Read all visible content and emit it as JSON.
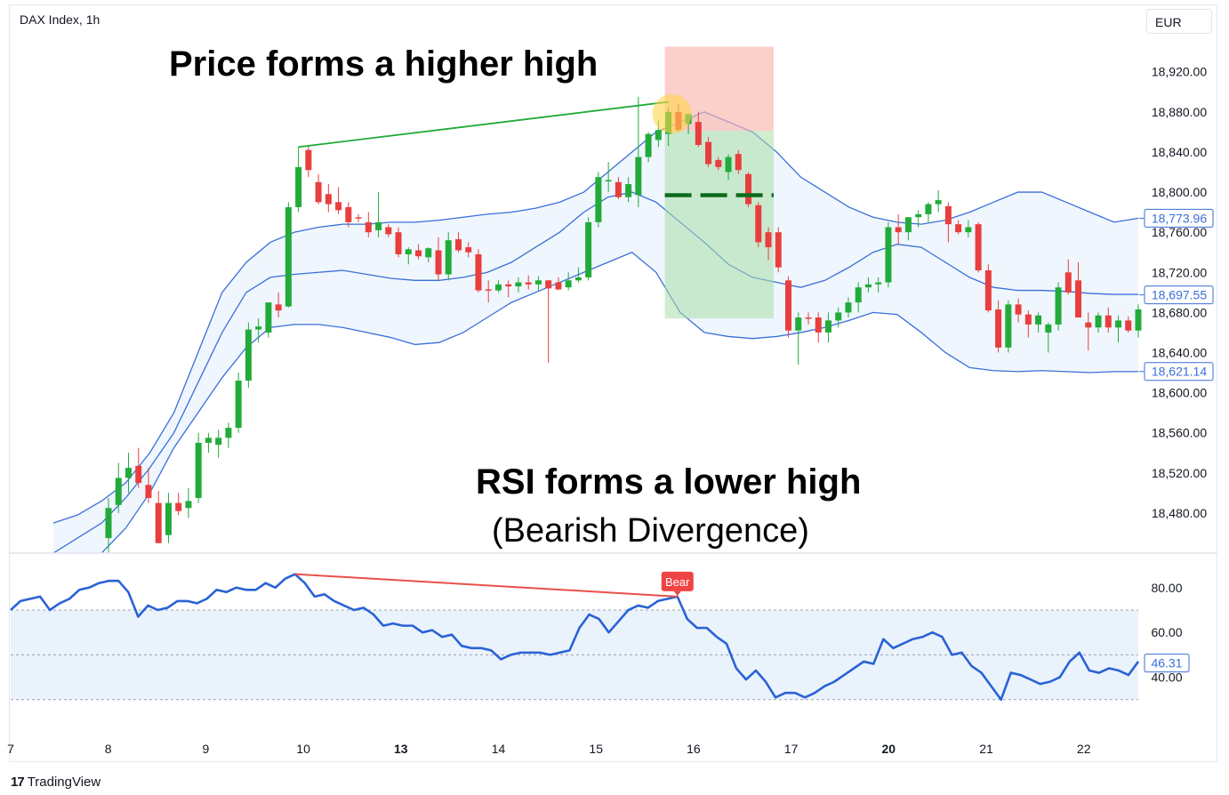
{
  "header": {
    "symbol": "DAX Index, 1h",
    "currency": "EUR"
  },
  "brand": {
    "logo": "17",
    "name": "TradingView"
  },
  "annotations": {
    "price": "Price forms a higher high",
    "rsi": "RSI forms a lower high",
    "rsi_sub": "(Bearish Divergence)",
    "signal": "Bear"
  },
  "colors": {
    "up": "#22ab3a",
    "down": "#e83e3e",
    "band_line": "#3a6fd8",
    "band_fill": "#eaf3fc",
    "rsi_line": "#2a62d6",
    "sl_zone": "#f9b5ad",
    "tp_zone": "#a9dfa9",
    "higher_high": "#22ab3a",
    "lower_high": "#e8504a"
  },
  "chart_data": [
    {
      "type": "candlestick",
      "title": "DAX Index, 1h",
      "yaxis_ticks": [
        "18,920.00",
        "18,880.00",
        "18,840.00",
        "18,800.00",
        "18,760.00",
        "18,720.00",
        "18,680.00",
        "18,640.00",
        "18,600.00",
        "18,560.00",
        "18,520.00",
        "18,480.00"
      ],
      "ylim": [
        18440,
        18965
      ],
      "price_labels": [
        {
          "value": 18773.96,
          "text": "18,773.96"
        },
        {
          "value": 18697.55,
          "text": "18,697.55"
        },
        {
          "value": 18621.14,
          "text": "18,621.14"
        }
      ],
      "x_ticks": [
        "7",
        "8",
        "9",
        "10",
        "13",
        "14",
        "15",
        "16",
        "17",
        "20",
        "21",
        "22"
      ],
      "x_ticks_bold": [
        "13",
        "20"
      ],
      "ohlc": [
        {
          "o": 18455,
          "h": 18495,
          "l": 18440,
          "c": 18485
        },
        {
          "o": 18488,
          "h": 18530,
          "l": 18480,
          "c": 18515
        },
        {
          "o": 18515,
          "h": 18540,
          "l": 18500,
          "c": 18525
        },
        {
          "o": 18527,
          "h": 18545,
          "l": 18505,
          "c": 18510
        },
        {
          "o": 18508,
          "h": 18525,
          "l": 18490,
          "c": 18495
        },
        {
          "o": 18490,
          "h": 18502,
          "l": 18450,
          "c": 18450
        },
        {
          "o": 18458,
          "h": 18500,
          "l": 18450,
          "c": 18490
        },
        {
          "o": 18490,
          "h": 18500,
          "l": 18478,
          "c": 18482
        },
        {
          "o": 18485,
          "h": 18505,
          "l": 18475,
          "c": 18492
        },
        {
          "o": 18495,
          "h": 18560,
          "l": 18490,
          "c": 18550
        },
        {
          "o": 18550,
          "h": 18560,
          "l": 18540,
          "c": 18555
        },
        {
          "o": 18548,
          "h": 18563,
          "l": 18535,
          "c": 18555
        },
        {
          "o": 18555,
          "h": 18570,
          "l": 18545,
          "c": 18565
        },
        {
          "o": 18565,
          "h": 18620,
          "l": 18560,
          "c": 18612
        },
        {
          "o": 18612,
          "h": 18670,
          "l": 18605,
          "c": 18663
        },
        {
          "o": 18663,
          "h": 18674,
          "l": 18650,
          "c": 18666
        },
        {
          "o": 18660,
          "h": 18685,
          "l": 18655,
          "c": 18690
        },
        {
          "o": 18688,
          "h": 18700,
          "l": 18675,
          "c": 18682
        },
        {
          "o": 18686,
          "h": 18790,
          "l": 18685,
          "c": 18785
        },
        {
          "o": 18785,
          "h": 18845,
          "l": 18780,
          "c": 18825
        },
        {
          "o": 18842,
          "h": 18847,
          "l": 18815,
          "c": 18822
        },
        {
          "o": 18810,
          "h": 18818,
          "l": 18788,
          "c": 18790
        },
        {
          "o": 18798,
          "h": 18808,
          "l": 18780,
          "c": 18788
        },
        {
          "o": 18790,
          "h": 18805,
          "l": 18778,
          "c": 18782
        },
        {
          "o": 18785,
          "h": 18790,
          "l": 18765,
          "c": 18770
        },
        {
          "o": 18775,
          "h": 18778,
          "l": 18770,
          "c": 18774
        },
        {
          "o": 18770,
          "h": 18780,
          "l": 18755,
          "c": 18760
        },
        {
          "o": 18762,
          "h": 18800,
          "l": 18755,
          "c": 18770
        },
        {
          "o": 18765,
          "h": 18768,
          "l": 18755,
          "c": 18758
        },
        {
          "o": 18760,
          "h": 18765,
          "l": 18735,
          "c": 18738
        },
        {
          "o": 18738,
          "h": 18745,
          "l": 18728,
          "c": 18743
        },
        {
          "o": 18742,
          "h": 18748,
          "l": 18733,
          "c": 18736
        },
        {
          "o": 18735,
          "h": 18745,
          "l": 18730,
          "c": 18744
        },
        {
          "o": 18742,
          "h": 18755,
          "l": 18712,
          "c": 18718
        },
        {
          "o": 18718,
          "h": 18760,
          "l": 18712,
          "c": 18752
        },
        {
          "o": 18753,
          "h": 18760,
          "l": 18740,
          "c": 18742
        },
        {
          "o": 18745,
          "h": 18750,
          "l": 18735,
          "c": 18740
        },
        {
          "o": 18738,
          "h": 18743,
          "l": 18700,
          "c": 18702
        },
        {
          "o": 18703,
          "h": 18712,
          "l": 18690,
          "c": 18702
        },
        {
          "o": 18702,
          "h": 18712,
          "l": 18700,
          "c": 18708
        },
        {
          "o": 18708,
          "h": 18712,
          "l": 18695,
          "c": 18706
        },
        {
          "o": 18706,
          "h": 18715,
          "l": 18700,
          "c": 18710
        },
        {
          "o": 18710,
          "h": 18717,
          "l": 18703,
          "c": 18708
        },
        {
          "o": 18708,
          "h": 18716,
          "l": 18702,
          "c": 18712
        },
        {
          "o": 18712,
          "h": 18712,
          "l": 18630,
          "c": 18704
        },
        {
          "o": 18710,
          "h": 18715,
          "l": 18702,
          "c": 18703
        },
        {
          "o": 18705,
          "h": 18720,
          "l": 18702,
          "c": 18712
        },
        {
          "o": 18712,
          "h": 18725,
          "l": 18710,
          "c": 18715
        },
        {
          "o": 18715,
          "h": 18775,
          "l": 18712,
          "c": 18770
        },
        {
          "o": 18770,
          "h": 18820,
          "l": 18765,
          "c": 18815
        },
        {
          "o": 18812,
          "h": 18830,
          "l": 18800,
          "c": 18812
        },
        {
          "o": 18810,
          "h": 18815,
          "l": 18793,
          "c": 18795
        },
        {
          "o": 18795,
          "h": 18815,
          "l": 18790,
          "c": 18808
        },
        {
          "o": 18797,
          "h": 18895,
          "l": 18785,
          "c": 18835
        },
        {
          "o": 18835,
          "h": 18860,
          "l": 18830,
          "c": 18858
        },
        {
          "o": 18852,
          "h": 18872,
          "l": 18845,
          "c": 18862
        },
        {
          "o": 18858,
          "h": 18885,
          "l": 18846,
          "c": 18880
        },
        {
          "o": 18880,
          "h": 18888,
          "l": 18860,
          "c": 18862
        },
        {
          "o": 18868,
          "h": 18878,
          "l": 18858,
          "c": 18878
        },
        {
          "o": 18870,
          "h": 18880,
          "l": 18845,
          "c": 18847
        },
        {
          "o": 18850,
          "h": 18855,
          "l": 18825,
          "c": 18828
        },
        {
          "o": 18832,
          "h": 18835,
          "l": 18822,
          "c": 18825
        },
        {
          "o": 18820,
          "h": 18838,
          "l": 18812,
          "c": 18835
        },
        {
          "o": 18838,
          "h": 18842,
          "l": 18818,
          "c": 18822
        },
        {
          "o": 18818,
          "h": 18820,
          "l": 18785,
          "c": 18788
        },
        {
          "o": 18787,
          "h": 18790,
          "l": 18745,
          "c": 18750
        },
        {
          "o": 18760,
          "h": 18765,
          "l": 18732,
          "c": 18745
        },
        {
          "o": 18760,
          "h": 18765,
          "l": 18720,
          "c": 18725
        },
        {
          "o": 18712,
          "h": 18716,
          "l": 18655,
          "c": 18662
        },
        {
          "o": 18662,
          "h": 18680,
          "l": 18628,
          "c": 18675
        },
        {
          "o": 18675,
          "h": 18680,
          "l": 18668,
          "c": 18674
        },
        {
          "o": 18675,
          "h": 18680,
          "l": 18650,
          "c": 18660
        },
        {
          "o": 18660,
          "h": 18680,
          "l": 18650,
          "c": 18672
        },
        {
          "o": 18672,
          "h": 18685,
          "l": 18665,
          "c": 18680
        },
        {
          "o": 18680,
          "h": 18695,
          "l": 18675,
          "c": 18690
        },
        {
          "o": 18690,
          "h": 18710,
          "l": 18680,
          "c": 18705
        },
        {
          "o": 18705,
          "h": 18715,
          "l": 18700,
          "c": 18708
        },
        {
          "o": 18708,
          "h": 18715,
          "l": 18700,
          "c": 18710
        },
        {
          "o": 18710,
          "h": 18770,
          "l": 18705,
          "c": 18765
        },
        {
          "o": 18765,
          "h": 18778,
          "l": 18748,
          "c": 18760
        },
        {
          "o": 18760,
          "h": 18775,
          "l": 18752,
          "c": 18775
        },
        {
          "o": 18775,
          "h": 18782,
          "l": 18765,
          "c": 18778
        },
        {
          "o": 18778,
          "h": 18790,
          "l": 18770,
          "c": 18788
        },
        {
          "o": 18788,
          "h": 18802,
          "l": 18780,
          "c": 18792
        },
        {
          "o": 18786,
          "h": 18790,
          "l": 18750,
          "c": 18768
        },
        {
          "o": 18768,
          "h": 18772,
          "l": 18758,
          "c": 18760
        },
        {
          "o": 18760,
          "h": 18772,
          "l": 18755,
          "c": 18765
        },
        {
          "o": 18768,
          "h": 18770,
          "l": 18720,
          "c": 18722
        },
        {
          "o": 18722,
          "h": 18728,
          "l": 18680,
          "c": 18682
        },
        {
          "o": 18683,
          "h": 18692,
          "l": 18640,
          "c": 18645
        },
        {
          "o": 18645,
          "h": 18692,
          "l": 18640,
          "c": 18688
        },
        {
          "o": 18688,
          "h": 18694,
          "l": 18670,
          "c": 18678
        },
        {
          "o": 18678,
          "h": 18682,
          "l": 18655,
          "c": 18668
        },
        {
          "o": 18668,
          "h": 18680,
          "l": 18660,
          "c": 18677
        },
        {
          "o": 18660,
          "h": 18670,
          "l": 18640,
          "c": 18668
        },
        {
          "o": 18668,
          "h": 18710,
          "l": 18662,
          "c": 18705
        },
        {
          "o": 18720,
          "h": 18733,
          "l": 18698,
          "c": 18700
        },
        {
          "o": 18712,
          "h": 18730,
          "l": 18680,
          "c": 18675
        },
        {
          "o": 18670,
          "h": 18680,
          "l": 18642,
          "c": 18665
        },
        {
          "o": 18665,
          "h": 18680,
          "l": 18660,
          "c": 18677
        },
        {
          "o": 18677,
          "h": 18685,
          "l": 18660,
          "c": 18665
        },
        {
          "o": 18665,
          "h": 18677,
          "l": 18650,
          "c": 18672
        },
        {
          "o": 18672,
          "h": 18676,
          "l": 18660,
          "c": 18662
        },
        {
          "o": 18662,
          "h": 18688,
          "l": 18655,
          "c": 18683
        }
      ],
      "bollinger": {
        "upper": [
          18470,
          18478,
          18492,
          18510,
          18540,
          18580,
          18640,
          18700,
          18730,
          18750,
          18760,
          18765,
          18768,
          18768,
          18770,
          18770,
          18772,
          18775,
          18778,
          18780,
          18784,
          18790,
          18800,
          18820,
          18840,
          18860,
          18870,
          18880,
          18870,
          18860,
          18840,
          18815,
          18800,
          18785,
          18775,
          18770,
          18768,
          18772,
          18780,
          18790,
          18800,
          18800,
          18790,
          18780,
          18770,
          18774
        ],
        "middle": [
          18440,
          18455,
          18470,
          18495,
          18525,
          18560,
          18610,
          18660,
          18700,
          18715,
          18718,
          18720,
          18722,
          18718,
          18714,
          18712,
          18712,
          18715,
          18720,
          18730,
          18745,
          18760,
          18780,
          18795,
          18800,
          18790,
          18770,
          18750,
          18728,
          18715,
          18710,
          18705,
          18712,
          18725,
          18740,
          18748,
          18745,
          18730,
          18715,
          18705,
          18702,
          18702,
          18701,
          18699,
          18698,
          18698
        ],
        "lower": [
          18410,
          18420,
          18440,
          18465,
          18500,
          18545,
          18580,
          18615,
          18645,
          18665,
          18668,
          18668,
          18665,
          18660,
          18655,
          18648,
          18650,
          18660,
          18675,
          18690,
          18700,
          18710,
          18720,
          18730,
          18740,
          18720,
          18680,
          18660,
          18656,
          18654,
          18656,
          18660,
          18665,
          18672,
          18680,
          18678,
          18660,
          18640,
          18625,
          18622,
          18621,
          18622,
          18621,
          18620,
          18621,
          18621
        ]
      },
      "annotations": {
        "higher_high_line": [
          {
            "bar": 19,
            "price": 18845
          },
          {
            "bar": 56,
            "price": 18890
          }
        ],
        "highlight_circle": {
          "bar": 56,
          "price": 18878
        },
        "stop_loss_zone": {
          "from_bar": 56,
          "to_bar": 66,
          "top": 18945,
          "bottom": 18861
        },
        "take_profit_zone": {
          "from_bar": 56,
          "to_bar": 66,
          "top": 18861,
          "bottom": 18674
        },
        "entry_level": 18797
      }
    },
    {
      "type": "line",
      "title": "RSI",
      "yaxis_ticks": [
        "80.00",
        "60.00",
        "40.00"
      ],
      "ylim": [
        20,
        93
      ],
      "band": [
        30,
        70
      ],
      "midline": 50,
      "last_value": {
        "value": 46.31,
        "text": "46.31"
      },
      "values": [
        70,
        74,
        75,
        76,
        70,
        73,
        75,
        79,
        80,
        82,
        83,
        83,
        78,
        67,
        72,
        70,
        71,
        74,
        74,
        73,
        75,
        79,
        78,
        80,
        79,
        79,
        82,
        80,
        84,
        86,
        82,
        76,
        77,
        74,
        72,
        70,
        71,
        68,
        63,
        64,
        63,
        63,
        60,
        61,
        58,
        59,
        54,
        53,
        53,
        52,
        48,
        50,
        51,
        51,
        51,
        50,
        51,
        52,
        62,
        68,
        66,
        60,
        65,
        70,
        72,
        71,
        74,
        75,
        76,
        66,
        62,
        62,
        58,
        55,
        44,
        39,
        43,
        38,
        31,
        33,
        33,
        31,
        33,
        36,
        38,
        41,
        44,
        47,
        46,
        57,
        53,
        55,
        57,
        58,
        60,
        58,
        50,
        51,
        45,
        42,
        36,
        30,
        42,
        41,
        39,
        37,
        38,
        40,
        47,
        51,
        43,
        42,
        44,
        43,
        41,
        47
      ],
      "annotations": {
        "lower_high_line": [
          {
            "idx": 29,
            "value": 86
          },
          {
            "idx": 68,
            "value": 76
          }
        ],
        "signal_label": {
          "idx": 68,
          "value": 76,
          "text": "Bear"
        }
      }
    }
  ]
}
